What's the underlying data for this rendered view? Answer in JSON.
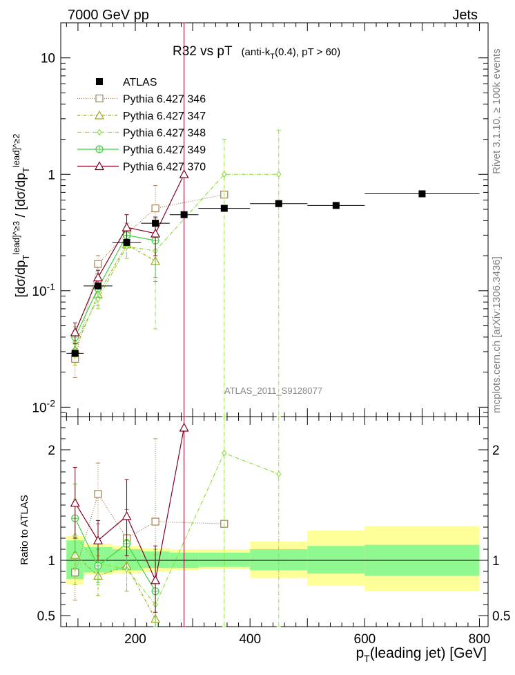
{
  "header": {
    "left": "7000 GeV pp",
    "right": "Jets",
    "side_top": "Rivet 3.1.10, ≥ 100k events",
    "side_bottom": "mcplots.cern.ch [arXiv:1306.3436]",
    "analysis_id": "ATLAS_2011_S9128077"
  },
  "title": {
    "main": "R32 vs pT",
    "sub_pre": "(anti-k",
    "sub_sub": "T",
    "sub_post": "(0.4), pT > 60)"
  },
  "ylabel_main": "[dσ/dp_T^lead]^≥3 / [dσ/dp_T^lead]^≥2",
  "ylabel_ratio": "Ratio to ATLAS",
  "xlabel": "p_T(leading jet) [GeV]",
  "colors": {
    "atlas": "#000000",
    "p346": "#a07e52",
    "p347": "#a0a81a",
    "p348": "#90e040",
    "p349": "#40d040",
    "p370": "#800020",
    "band_inner": "#90f890",
    "band_outer": "#ffff99"
  },
  "chart_data": {
    "type": "scatter",
    "x_axis": {
      "range": [
        70,
        815
      ],
      "ticks": [
        200,
        400,
        600,
        800
      ]
    },
    "y_axis_main": {
      "scale": "log",
      "range": [
        0.0083,
        20
      ],
      "tick_labels": [
        "10^-2",
        "10^-1",
        "1",
        "10"
      ]
    },
    "y_axis_ratio": {
      "range": [
        0.4,
        2.3
      ],
      "tick_labels": [
        "0.5",
        "1",
        "2"
      ]
    },
    "legend": [
      "ATLAS",
      "Pythia 6.427 346",
      "Pythia 6.427 347",
      "Pythia 6.427 348",
      "Pythia 6.427 349",
      "Pythia 6.427 370"
    ],
    "atlas": {
      "name": "ATLAS",
      "points": [
        {
          "x": 95,
          "xlo": 80,
          "xhi": 110,
          "y": 0.029
        },
        {
          "x": 135,
          "xlo": 110,
          "xhi": 160,
          "y": 0.11
        },
        {
          "x": 185,
          "xlo": 160,
          "xhi": 210,
          "y": 0.26
        },
        {
          "x": 235,
          "xlo": 210,
          "xhi": 260,
          "y": 0.38
        },
        {
          "x": 285,
          "xlo": 260,
          "xhi": 310,
          "y": 0.45
        },
        {
          "x": 355,
          "xlo": 310,
          "xhi": 400,
          "y": 0.51
        },
        {
          "x": 450,
          "xlo": 400,
          "xhi": 500,
          "y": 0.56
        },
        {
          "x": 550,
          "xlo": 500,
          "xhi": 600,
          "y": 0.54
        },
        {
          "x": 700,
          "xlo": 600,
          "xhi": 800,
          "y": 0.68
        }
      ]
    },
    "bands": [
      {
        "xlo": 80,
        "xhi": 110,
        "inner": [
          0.83,
          1.18
        ],
        "outer": [
          0.78,
          1.22
        ]
      },
      {
        "xlo": 110,
        "xhi": 160,
        "inner": [
          0.89,
          1.12
        ],
        "outer": [
          0.87,
          1.15
        ]
      },
      {
        "xlo": 160,
        "xhi": 210,
        "inner": [
          0.91,
          1.1
        ],
        "outer": [
          0.88,
          1.13
        ]
      },
      {
        "xlo": 210,
        "xhi": 260,
        "inner": [
          0.93,
          1.08
        ],
        "outer": [
          0.9,
          1.11
        ]
      },
      {
        "xlo": 260,
        "xhi": 310,
        "inner": [
          0.93,
          1.07
        ],
        "outer": [
          0.91,
          1.1
        ]
      },
      {
        "xlo": 310,
        "xhi": 400,
        "inner": [
          0.94,
          1.07
        ],
        "outer": [
          0.92,
          1.1
        ]
      },
      {
        "xlo": 400,
        "xhi": 500,
        "inner": [
          0.91,
          1.1
        ],
        "outer": [
          0.84,
          1.17
        ]
      },
      {
        "xlo": 500,
        "xhi": 600,
        "inner": [
          0.88,
          1.13
        ],
        "outer": [
          0.77,
          1.27
        ]
      },
      {
        "xlo": 600,
        "xhi": 800,
        "inner": [
          0.86,
          1.14
        ],
        "outer": [
          0.72,
          1.31
        ]
      }
    ],
    "series": [
      {
        "name": "Pythia 6.427 346",
        "marker": "square",
        "dash": "1,2",
        "points": [
          {
            "x": 95,
            "y": 0.026,
            "lo": 0.018,
            "hi": 0.035
          },
          {
            "x": 135,
            "y": 0.17,
            "lo": 0.14,
            "hi": 0.2
          },
          {
            "x": 185,
            "y": 0.31,
            "lo": 0.25,
            "hi": 0.38
          },
          {
            "x": 235,
            "y": 0.51,
            "lo": 0.3,
            "hi": 0.8
          },
          {
            "x": 355,
            "y": 0.67
          }
        ]
      },
      {
        "name": "Pythia 6.427 347",
        "marker": "triangle",
        "dash": "4,2,1,2",
        "points": [
          {
            "x": 95,
            "y": 0.031,
            "lo": 0.023,
            "hi": 0.04
          },
          {
            "x": 135,
            "y": 0.093,
            "lo": 0.075,
            "hi": 0.11
          },
          {
            "x": 185,
            "y": 0.25,
            "lo": 0.19,
            "hi": 0.31
          },
          {
            "x": 235,
            "y": 0.18,
            "lo": 0.12,
            "hi": 0.26
          }
        ]
      },
      {
        "name": "Pythia 6.427 348",
        "marker": "diamond",
        "dash": "6,2,1,2",
        "points": [
          {
            "x": 95,
            "y": 0.036,
            "lo": 0.027,
            "hi": 0.045
          },
          {
            "x": 135,
            "y": 0.085,
            "lo": 0.07,
            "hi": 0.1
          },
          {
            "x": 185,
            "y": 0.24,
            "lo": 0.19,
            "hi": 0.29
          },
          {
            "x": 235,
            "y": 0.22,
            "lo": 0.047,
            "hi": 0.4
          },
          {
            "x": 355,
            "y": 1.0,
            "lo": 0.0083,
            "hi": 2.0
          },
          {
            "x": 450,
            "y": 1.0,
            "lo": 0.0083,
            "hi": 2.4
          }
        ]
      },
      {
        "name": "Pythia 6.427 349",
        "marker": "circleplus",
        "dash": "",
        "points": [
          {
            "x": 95,
            "y": 0.04,
            "lo": 0.031,
            "hi": 0.049
          },
          {
            "x": 135,
            "y": 0.105,
            "lo": 0.088,
            "hi": 0.122
          },
          {
            "x": 185,
            "y": 0.3,
            "lo": 0.24,
            "hi": 0.36
          },
          {
            "x": 235,
            "y": 0.27,
            "lo": 0.13,
            "hi": 0.42
          }
        ]
      },
      {
        "name": "Pythia 6.427 370",
        "marker": "triangle",
        "dash": "",
        "points": [
          {
            "x": 95,
            "y": 0.044,
            "lo": 0.035,
            "hi": 0.053
          },
          {
            "x": 135,
            "y": 0.13,
            "lo": 0.11,
            "hi": 0.15
          },
          {
            "x": 185,
            "y": 0.35,
            "lo": 0.27,
            "hi": 0.45
          },
          {
            "x": 235,
            "y": 0.31,
            "lo": 0.2,
            "hi": 0.43
          },
          {
            "x": 285,
            "y": 1.0,
            "lo": 0.0083,
            "hi": 20
          }
        ]
      }
    ],
    "ratios": [
      {
        "name": "Pythia 6.427 346",
        "points": [
          {
            "x": 95,
            "y": 0.89,
            "lo": 0.64,
            "hi": 1.2
          },
          {
            "x": 135,
            "y": 1.6,
            "lo": 1.33,
            "hi": 1.88
          },
          {
            "x": 185,
            "y": 1.2,
            "lo": 0.96,
            "hi": 1.46
          },
          {
            "x": 235,
            "y": 1.35,
            "lo": 0.82,
            "hi": 2.1
          },
          {
            "x": 355,
            "y": 1.33
          }
        ]
      },
      {
        "name": "Pythia 6.427 347",
        "points": [
          {
            "x": 95,
            "y": 1.05,
            "lo": 0.78,
            "hi": 1.37
          },
          {
            "x": 135,
            "y": 0.86,
            "lo": 0.68,
            "hi": 1.04
          },
          {
            "x": 185,
            "y": 0.95,
            "lo": 0.72,
            "hi": 1.19
          },
          {
            "x": 235,
            "y": 0.47,
            "lo": 0.32,
            "hi": 0.7
          }
        ]
      },
      {
        "name": "Pythia 6.427 348",
        "points": [
          {
            "x": 95,
            "y": 1.22,
            "lo": 0.93,
            "hi": 1.55
          },
          {
            "x": 135,
            "y": 0.97,
            "lo": 0.78,
            "hi": 1.16
          },
          {
            "x": 185,
            "y": 0.92,
            "lo": 0.72,
            "hi": 1.12
          },
          {
            "x": 235,
            "y": 0.6,
            "lo": 0.4,
            "hi": 1.05
          },
          {
            "x": 355,
            "y": 1.97,
            "lo": 0.4,
            "hi": 2.3
          },
          {
            "x": 450,
            "y": 1.78,
            "lo": 0.4,
            "hi": 2.3
          }
        ]
      },
      {
        "name": "Pythia 6.427 349",
        "points": [
          {
            "x": 95,
            "y": 1.38,
            "lo": 1.07,
            "hi": 1.69
          },
          {
            "x": 135,
            "y": 0.95,
            "lo": 0.8,
            "hi": 1.1
          },
          {
            "x": 185,
            "y": 1.15,
            "lo": 0.92,
            "hi": 1.38
          },
          {
            "x": 235,
            "y": 0.72,
            "lo": 0.35,
            "hi": 1.1
          }
        ]
      },
      {
        "name": "Pythia 6.427 370",
        "points": [
          {
            "x": 95,
            "y": 1.52,
            "lo": 1.2,
            "hi": 1.84
          },
          {
            "x": 135,
            "y": 1.18,
            "lo": 1.0,
            "hi": 1.36
          },
          {
            "x": 185,
            "y": 1.4,
            "lo": 1.04,
            "hi": 1.73
          },
          {
            "x": 235,
            "y": 0.82,
            "lo": 0.53,
            "hi": 1.13
          },
          {
            "x": 285,
            "y": 2.2,
            "lo": 0.4,
            "hi": 2.3
          }
        ]
      }
    ]
  }
}
